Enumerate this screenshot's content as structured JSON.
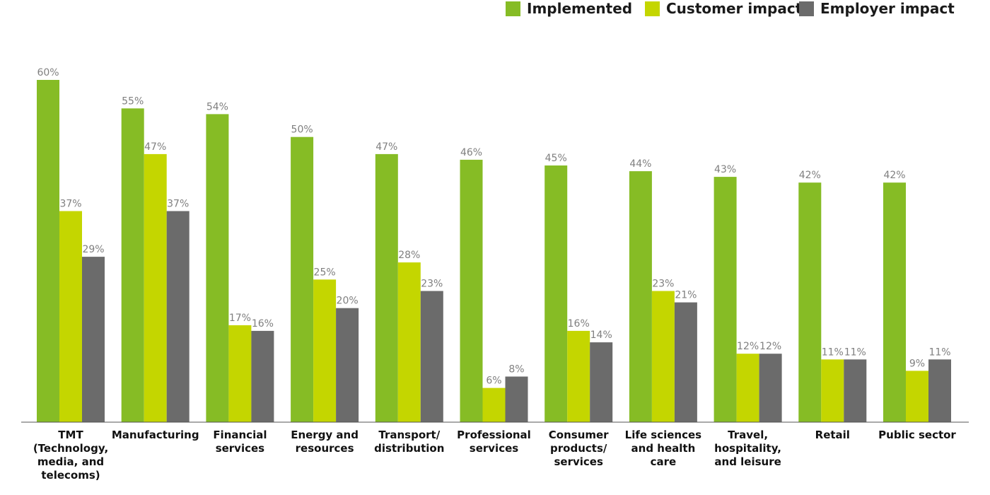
{
  "chart_data": {
    "type": "bar",
    "title": "",
    "xlabel": "",
    "ylabel": "",
    "ylim": [
      0,
      60
    ],
    "grid": false,
    "legend_position": "top-right",
    "value_format": "%",
    "categories": [
      "TMT (Technology, media, and telecoms)",
      "Manufacturing",
      "Financial services",
      "Energy and resources",
      "Transport/ distribution",
      "Professional services",
      "Consumer products/ services",
      "Life sciences and health care",
      "Travel, hospitality, and leisure",
      "Retail",
      "Public sector"
    ],
    "category_lines": [
      [
        "TMT",
        "(Technology,",
        "media, and",
        "telecoms)"
      ],
      [
        "Manufacturing"
      ],
      [
        "Financial",
        "services"
      ],
      [
        "Energy and",
        "resources"
      ],
      [
        "Transport/",
        "distribution"
      ],
      [
        "Professional",
        "services"
      ],
      [
        "Consumer",
        "products/",
        "services"
      ],
      [
        "Life sciences",
        "and health",
        "care"
      ],
      [
        "Travel,",
        "hospitality,",
        "and leisure"
      ],
      [
        "Retail"
      ],
      [
        "Public sector"
      ]
    ],
    "series": [
      {
        "name": "Implemented",
        "color": "#86bc25",
        "values": [
          60,
          55,
          54,
          50,
          47,
          46,
          45,
          44,
          43,
          42,
          42
        ]
      },
      {
        "name": "Customer impact",
        "color": "#c4d600",
        "values": [
          37,
          47,
          17,
          25,
          28,
          6,
          16,
          23,
          12,
          11,
          9
        ]
      },
      {
        "name": "Employer impact",
        "color": "#6b6b6b",
        "values": [
          29,
          37,
          16,
          20,
          23,
          8,
          14,
          21,
          12,
          11,
          11
        ]
      }
    ]
  }
}
